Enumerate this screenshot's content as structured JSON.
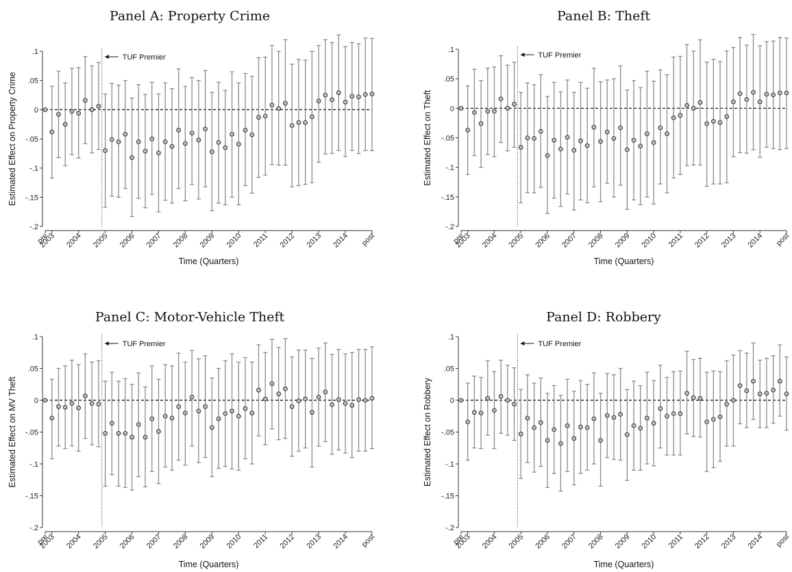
{
  "figure": {
    "x_ticks": [
      "pre",
      "2003",
      "2004",
      "2005",
      "2006",
      "2007",
      "2008",
      "2009",
      "2010",
      "2011",
      "2012",
      "2013",
      "2014",
      "post"
    ],
    "xlabel": "Time (Quarters)",
    "y_tick_labels": [
      ".1",
      ".05",
      "0",
      "-.05",
      "-.1",
      "-.15",
      "-.2"
    ],
    "annotation": "TUF Premier",
    "colors": {
      "marker_fill": "#bdbdbd",
      "marker_stroke": "#333333",
      "ci": "#8a8a8a",
      "zero_line": "#222222",
      "event_line": "#555555"
    }
  },
  "chart_data": [
    {
      "type": "scatter",
      "title": "Panel A: Property Crime",
      "xlabel": "Time (Quarters)",
      "ylabel": "Estimated Effect on Property Crime",
      "ylim": [
        -0.2,
        0.1
      ],
      "event_x": 8.5,
      "y": [
        0,
        -0.038,
        -0.008,
        -0.025,
        -0.003,
        -0.006,
        0.016,
        0,
        0.006,
        -0.07,
        -0.051,
        -0.055,
        -0.042,
        -0.082,
        -0.055,
        -0.071,
        -0.05,
        -0.074,
        -0.055,
        -0.063,
        -0.035,
        -0.058,
        -0.04,
        -0.052,
        -0.033,
        -0.072,
        -0.056,
        -0.065,
        -0.042,
        -0.059,
        -0.035,
        -0.043,
        -0.013,
        -0.011,
        0.008,
        0.002,
        0.011,
        -0.027,
        -0.022,
        -0.022,
        -0.012,
        0.015,
        0.025,
        0.017,
        0.029,
        0.013,
        0.023,
        0.022,
        0.026,
        0.027
      ],
      "ci_low": [
        0,
        -0.117,
        -0.082,
        -0.096,
        -0.077,
        -0.083,
        -0.058,
        -0.074,
        -0.068,
        -0.167,
        -0.148,
        -0.15,
        -0.135,
        -0.183,
        -0.152,
        -0.168,
        -0.145,
        -0.175,
        -0.155,
        -0.16,
        -0.135,
        -0.156,
        -0.128,
        -0.153,
        -0.132,
        -0.173,
        -0.16,
        -0.163,
        -0.15,
        -0.163,
        -0.13,
        -0.143,
        -0.116,
        -0.112,
        -0.094,
        -0.095,
        -0.095,
        -0.132,
        -0.13,
        -0.128,
        -0.125,
        -0.09,
        -0.076,
        -0.075,
        -0.07,
        -0.08,
        -0.07,
        -0.075,
        -0.07,
        -0.07
      ],
      "ci_high": [
        0,
        0.04,
        0.066,
        0.046,
        0.071,
        0.072,
        0.091,
        0.075,
        0.081,
        0.027,
        0.045,
        0.042,
        0.05,
        0.02,
        0.043,
        0.026,
        0.047,
        0.027,
        0.046,
        0.036,
        0.07,
        0.04,
        0.055,
        0.05,
        0.067,
        0.03,
        0.047,
        0.033,
        0.065,
        0.046,
        0.062,
        0.057,
        0.089,
        0.09,
        0.11,
        0.1,
        0.12,
        0.078,
        0.086,
        0.085,
        0.1,
        0.11,
        0.12,
        0.115,
        0.128,
        0.108,
        0.115,
        0.113,
        0.123,
        0.122
      ]
    },
    {
      "type": "scatter",
      "title": "Panel B: Theft",
      "xlabel": "Time (Quarters)",
      "ylabel": "Estimated Effect on Theft",
      "ylim": [
        -0.2,
        0.1
      ],
      "event_x": 8.5,
      "y": [
        0,
        -0.037,
        -0.007,
        -0.026,
        -0.005,
        -0.005,
        0.016,
        0,
        0.007,
        -0.066,
        -0.05,
        -0.051,
        -0.039,
        -0.08,
        -0.054,
        -0.069,
        -0.049,
        -0.071,
        -0.055,
        -0.063,
        -0.032,
        -0.056,
        -0.04,
        -0.051,
        -0.033,
        -0.07,
        -0.054,
        -0.064,
        -0.043,
        -0.058,
        -0.033,
        -0.043,
        -0.016,
        -0.012,
        0.005,
        0,
        0.01,
        -0.026,
        -0.022,
        -0.024,
        -0.014,
        0.011,
        0.025,
        0.015,
        0.027,
        0.011,
        0.024,
        0.023,
        0.026,
        0.026
      ],
      "ci_low": [
        0,
        -0.112,
        -0.08,
        -0.1,
        -0.078,
        -0.082,
        -0.058,
        -0.072,
        -0.066,
        -0.16,
        -0.143,
        -0.143,
        -0.134,
        -0.178,
        -0.152,
        -0.166,
        -0.145,
        -0.172,
        -0.155,
        -0.16,
        -0.133,
        -0.158,
        -0.127,
        -0.15,
        -0.13,
        -0.171,
        -0.155,
        -0.163,
        -0.15,
        -0.162,
        -0.128,
        -0.143,
        -0.118,
        -0.112,
        -0.097,
        -0.096,
        -0.096,
        -0.132,
        -0.128,
        -0.128,
        -0.126,
        -0.082,
        -0.075,
        -0.076,
        -0.07,
        -0.083,
        -0.066,
        -0.068,
        -0.07,
        -0.068
      ],
      "ci_high": [
        0,
        0.038,
        0.066,
        0.047,
        0.068,
        0.07,
        0.089,
        0.073,
        0.078,
        0.027,
        0.043,
        0.04,
        0.057,
        0.02,
        0.044,
        0.028,
        0.048,
        0.027,
        0.044,
        0.034,
        0.068,
        0.045,
        0.048,
        0.05,
        0.072,
        0.031,
        0.047,
        0.035,
        0.063,
        0.046,
        0.065,
        0.057,
        0.087,
        0.088,
        0.108,
        0.097,
        0.116,
        0.078,
        0.083,
        0.079,
        0.097,
        0.103,
        0.12,
        0.107,
        0.125,
        0.106,
        0.113,
        0.114,
        0.12,
        0.119
      ]
    },
    {
      "type": "scatter",
      "title": "Panel C: Motor-Vehicle Theft",
      "xlabel": "Time (Quarters)",
      "ylabel": "Estimated Effect on MV Theft",
      "ylim": [
        -0.2,
        0.1
      ],
      "event_x": 8.5,
      "y": [
        0,
        -0.028,
        -0.01,
        -0.011,
        -0.005,
        -0.012,
        0.007,
        -0.005,
        -0.006,
        -0.052,
        -0.036,
        -0.052,
        -0.052,
        -0.058,
        -0.038,
        -0.058,
        -0.029,
        -0.049,
        -0.025,
        -0.028,
        -0.01,
        -0.02,
        0.005,
        -0.017,
        -0.01,
        -0.043,
        -0.029,
        -0.021,
        -0.017,
        -0.025,
        -0.013,
        -0.02,
        0.016,
        0.002,
        0.026,
        0.01,
        0.018,
        -0.01,
        -0.001,
        0.002,
        -0.019,
        0.005,
        0.013,
        -0.007,
        0.001,
        -0.005,
        -0.008,
        0.001,
        0.0,
        0.003
      ],
      "ci_low": [
        0,
        -0.092,
        -0.072,
        -0.076,
        -0.072,
        -0.08,
        -0.06,
        -0.07,
        -0.073,
        -0.135,
        -0.117,
        -0.135,
        -0.137,
        -0.141,
        -0.12,
        -0.136,
        -0.112,
        -0.131,
        -0.105,
        -0.11,
        -0.094,
        -0.102,
        -0.072,
        -0.098,
        -0.09,
        -0.12,
        -0.107,
        -0.104,
        -0.108,
        -0.11,
        -0.092,
        -0.1,
        -0.056,
        -0.07,
        -0.045,
        -0.062,
        -0.06,
        -0.088,
        -0.08,
        -0.075,
        -0.105,
        -0.072,
        -0.065,
        -0.085,
        -0.078,
        -0.083,
        -0.09,
        -0.08,
        -0.08,
        -0.076
      ],
      "ci_high": [
        0,
        0.033,
        0.05,
        0.054,
        0.063,
        0.056,
        0.073,
        0.06,
        0.062,
        0.03,
        0.044,
        0.03,
        0.034,
        0.025,
        0.043,
        0.021,
        0.054,
        0.033,
        0.056,
        0.054,
        0.074,
        0.06,
        0.078,
        0.065,
        0.07,
        0.035,
        0.05,
        0.062,
        0.073,
        0.06,
        0.067,
        0.06,
        0.087,
        0.075,
        0.096,
        0.083,
        0.097,
        0.068,
        0.079,
        0.079,
        0.066,
        0.082,
        0.09,
        0.072,
        0.08,
        0.073,
        0.075,
        0.08,
        0.08,
        0.084
      ]
    },
    {
      "type": "scatter",
      "title": "Panel D: Robbery",
      "xlabel": "Time (Quarters)",
      "ylabel": "Estimated Effect on Robbery",
      "ylim": [
        -0.2,
        0.1
      ],
      "event_x": 8.5,
      "y": [
        0,
        -0.034,
        -0.019,
        -0.02,
        0.003,
        -0.016,
        0.006,
        0,
        -0.006,
        -0.053,
        -0.028,
        -0.043,
        -0.035,
        -0.063,
        -0.046,
        -0.068,
        -0.04,
        -0.06,
        -0.042,
        -0.043,
        -0.029,
        -0.063,
        -0.024,
        -0.027,
        -0.022,
        -0.054,
        -0.04,
        -0.044,
        -0.028,
        -0.036,
        -0.013,
        -0.025,
        -0.021,
        -0.021,
        0.011,
        0.004,
        0.003,
        -0.034,
        -0.03,
        -0.026,
        -0.006,
        0,
        0.023,
        0.015,
        0.03,
        0.01,
        0.011,
        0.016,
        0.03,
        0.01
      ],
      "ci_low": [
        0,
        -0.094,
        -0.075,
        -0.076,
        -0.055,
        -0.076,
        -0.052,
        -0.055,
        -0.063,
        -0.123,
        -0.098,
        -0.113,
        -0.104,
        -0.137,
        -0.115,
        -0.143,
        -0.112,
        -0.133,
        -0.115,
        -0.11,
        -0.1,
        -0.135,
        -0.09,
        -0.093,
        -0.094,
        -0.126,
        -0.11,
        -0.11,
        -0.1,
        -0.103,
        -0.075,
        -0.086,
        -0.086,
        -0.086,
        -0.053,
        -0.057,
        -0.058,
        -0.112,
        -0.106,
        -0.096,
        -0.072,
        -0.072,
        -0.037,
        -0.043,
        -0.03,
        -0.043,
        -0.043,
        -0.036,
        -0.025,
        -0.047
      ],
      "ci_high": [
        0,
        0.027,
        0.038,
        0.036,
        0.062,
        0.045,
        0.063,
        0.055,
        0.051,
        0.017,
        0.04,
        0.027,
        0.035,
        0.011,
        0.023,
        0.008,
        0.033,
        0.014,
        0.031,
        0.025,
        0.043,
        0.011,
        0.042,
        0.04,
        0.05,
        0.017,
        0.03,
        0.023,
        0.044,
        0.031,
        0.055,
        0.036,
        0.045,
        0.046,
        0.077,
        0.064,
        0.066,
        0.044,
        0.046,
        0.045,
        0.062,
        0.071,
        0.078,
        0.074,
        0.09,
        0.063,
        0.066,
        0.07,
        0.087,
        0.068
      ]
    }
  ]
}
